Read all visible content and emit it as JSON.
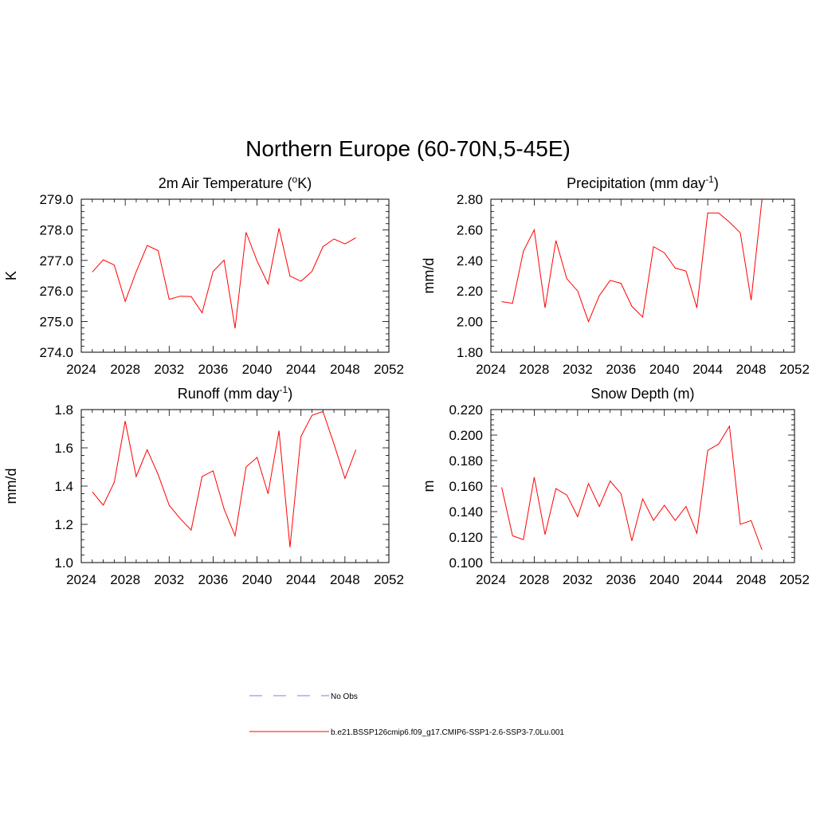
{
  "figure": {
    "title": "Northern Europe (60-70N,5-45E)"
  },
  "colors": {
    "model": "#ff0000",
    "obs": "#9b9bdc",
    "axis": "#000000"
  },
  "legend": [
    {
      "label": "No Obs",
      "style": "dashed"
    },
    {
      "label": "b.e21.BSSP126cmip6.f09_g17.CMIP6-SSP1-2.6-SSP3-7.0Lu.001",
      "style": "solid"
    }
  ],
  "chart_data": [
    {
      "type": "line",
      "title": "2m Air Temperature (",
      "title_sup": "o",
      "title_end": "K)",
      "ylabel": "K",
      "xlim": [
        2024,
        2052
      ],
      "xticks": [
        2024,
        2028,
        2032,
        2036,
        2040,
        2044,
        2048,
        2052
      ],
      "ylim": [
        274.0,
        279.0
      ],
      "yticks": [
        274.0,
        275.0,
        276.0,
        277.0,
        278.0,
        279.0
      ],
      "ytick_decimals": 1,
      "x": [
        2025,
        2026,
        2027,
        2028,
        2029,
        2030,
        2031,
        2032,
        2033,
        2034,
        2035,
        2036,
        2037,
        2038,
        2039,
        2040,
        2041,
        2042,
        2043,
        2044,
        2045,
        2046,
        2047,
        2048,
        2049
      ],
      "series": [
        {
          "values": [
            276.62,
            277.02,
            276.85,
            275.66,
            276.63,
            277.49,
            277.32,
            275.73,
            275.83,
            275.82,
            275.29,
            276.64,
            277.01,
            274.78,
            277.92,
            276.98,
            276.23,
            278.05,
            276.49,
            276.32,
            276.64,
            277.45,
            277.7,
            277.54,
            277.74
          ]
        }
      ]
    },
    {
      "type": "line",
      "title": "Precipitation (mm day",
      "title_sup": "-1",
      "title_end": ")",
      "ylabel": "mm/d",
      "xlim": [
        2024,
        2052
      ],
      "xticks": [
        2024,
        2028,
        2032,
        2036,
        2040,
        2044,
        2048,
        2052
      ],
      "ylim": [
        1.8,
        2.8
      ],
      "yticks": [
        1.8,
        2.0,
        2.2,
        2.4,
        2.6,
        2.8
      ],
      "ytick_decimals": 2,
      "x": [
        2025,
        2026,
        2027,
        2028,
        2029,
        2030,
        2031,
        2032,
        2033,
        2034,
        2035,
        2036,
        2037,
        2038,
        2039,
        2040,
        2041,
        2042,
        2043,
        2044,
        2045,
        2046,
        2047,
        2048,
        2049
      ],
      "series": [
        {
          "values": [
            2.13,
            2.12,
            2.46,
            2.6,
            2.09,
            2.53,
            2.28,
            2.2,
            2.0,
            2.17,
            2.27,
            2.25,
            2.1,
            2.03,
            2.49,
            2.45,
            2.35,
            2.33,
            2.09,
            2.71,
            2.71,
            2.65,
            2.58,
            2.14,
            2.8
          ]
        }
      ]
    },
    {
      "type": "line",
      "title": "Runoff (mm day",
      "title_sup": "-1",
      "title_end": ")",
      "ylabel": "mm/d",
      "xlim": [
        2024,
        2052
      ],
      "xticks": [
        2024,
        2028,
        2032,
        2036,
        2040,
        2044,
        2048,
        2052
      ],
      "ylim": [
        1.0,
        1.8
      ],
      "yticks": [
        1.0,
        1.2,
        1.4,
        1.6,
        1.8
      ],
      "ytick_decimals": 1,
      "x": [
        2025,
        2026,
        2027,
        2028,
        2029,
        2030,
        2031,
        2032,
        2033,
        2034,
        2035,
        2036,
        2037,
        2038,
        2039,
        2040,
        2041,
        2042,
        2043,
        2044,
        2045,
        2046,
        2047,
        2048,
        2049
      ],
      "series": [
        {
          "values": [
            1.37,
            1.3,
            1.42,
            1.74,
            1.45,
            1.59,
            1.46,
            1.3,
            1.23,
            1.17,
            1.45,
            1.48,
            1.28,
            1.14,
            1.5,
            1.55,
            1.36,
            1.69,
            1.08,
            1.66,
            1.77,
            1.79,
            1.62,
            1.44,
            1.59
          ]
        }
      ]
    },
    {
      "type": "line",
      "title": "Snow Depth (m)",
      "title_sup": "",
      "title_end": "",
      "ylabel": "m",
      "xlim": [
        2024,
        2052
      ],
      "xticks": [
        2024,
        2028,
        2032,
        2036,
        2040,
        2044,
        2048,
        2052
      ],
      "ylim": [
        0.1,
        0.22
      ],
      "yticks": [
        0.1,
        0.12,
        0.14,
        0.16,
        0.18,
        0.2,
        0.22
      ],
      "ytick_decimals": 3,
      "x": [
        2025,
        2026,
        2027,
        2028,
        2029,
        2030,
        2031,
        2032,
        2033,
        2034,
        2035,
        2036,
        2037,
        2038,
        2039,
        2040,
        2041,
        2042,
        2043,
        2044,
        2045,
        2046,
        2047,
        2048,
        2049
      ],
      "series": [
        {
          "values": [
            0.159,
            0.121,
            0.118,
            0.167,
            0.122,
            0.158,
            0.153,
            0.136,
            0.162,
            0.144,
            0.164,
            0.154,
            0.117,
            0.15,
            0.133,
            0.145,
            0.133,
            0.144,
            0.123,
            0.188,
            0.193,
            0.207,
            0.13,
            0.133,
            0.11
          ]
        }
      ]
    }
  ]
}
